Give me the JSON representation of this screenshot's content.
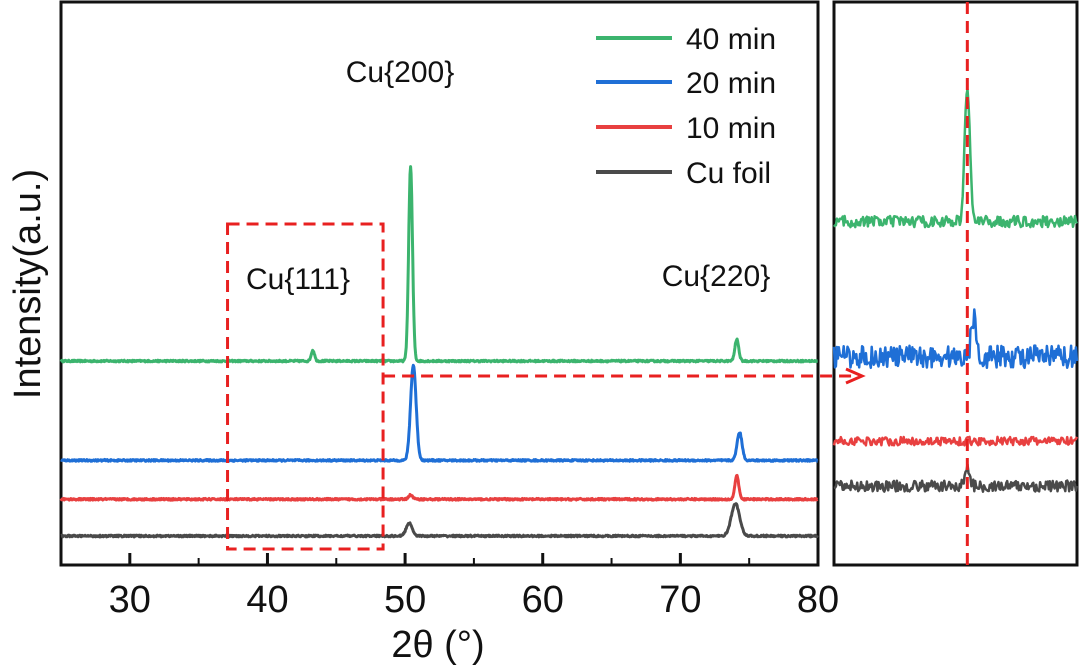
{
  "chart_data": [
    {
      "type": "line",
      "xlabel": "2θ (°)",
      "ylabel": "Intensity(a.u.)",
      "xlim": [
        25,
        80
      ],
      "ylim": [
        0,
        1
      ],
      "x_ticks": [
        30,
        40,
        50,
        60,
        70,
        80
      ],
      "x_tick_labels": [
        "30",
        "40",
        "50",
        "60",
        "70",
        "80"
      ],
      "y_ticks_shown": false,
      "legend": {
        "position": "top-right"
      },
      "series": [
        {
          "name": "40 min",
          "color": "#3cb46e",
          "baseline": 0.405,
          "peaks": [
            {
              "x": 43.3,
              "h": 0.025,
              "w": 0.12
            },
            {
              "x": 50.4,
              "h": 0.45,
              "w": 0.14
            },
            {
              "x": 74.1,
              "h": 0.05,
              "w": 0.14
            }
          ]
        },
        {
          "name": "20 min",
          "color": "#1f6fd6",
          "baseline": 0.175,
          "peaks": [
            {
              "x": 50.6,
              "h": 0.22,
              "w": 0.2
            },
            {
              "x": 74.3,
              "h": 0.065,
              "w": 0.18
            }
          ]
        },
        {
          "name": "10 min",
          "color": "#e84040",
          "baseline": 0.085,
          "peaks": [
            {
              "x": 50.4,
              "h": 0.01,
              "w": 0.15
            },
            {
              "x": 74.1,
              "h": 0.055,
              "w": 0.14
            }
          ]
        },
        {
          "name": "Cu foil",
          "color": "#4a4a4a",
          "baseline": 0.0,
          "peaks": [
            {
              "x": 50.3,
              "h": 0.03,
              "w": 0.22
            },
            {
              "x": 74.0,
              "h": 0.075,
              "w": 0.3
            }
          ]
        }
      ],
      "annotations": [
        {
          "text": "Cu{200}",
          "x": 50.4
        },
        {
          "text": "Cu{111}",
          "x": 43.3
        },
        {
          "text": "Cu{220}",
          "x": 74.1
        }
      ],
      "highlight_box": {
        "x_range": [
          37.1,
          48.4
        ],
        "style": "dashed",
        "color": "#e82020"
      }
    },
    {
      "type": "line",
      "description_role": "zoomed inset of the highlighted 2θ range",
      "x_range_source": [
        37.1,
        48.4
      ],
      "reference_line": {
        "x": 43.3,
        "style": "dashed",
        "color": "#e82020"
      },
      "series": [
        {
          "name": "40 min",
          "color": "#3cb46e",
          "baseline": 0.61,
          "noise": 0.02,
          "peak_h": 0.24,
          "peak_x": 43.3
        },
        {
          "name": "20 min",
          "color": "#1f6fd6",
          "baseline": 0.37,
          "noise": 0.04,
          "peak_h": 0.07,
          "peak_x": 43.6
        },
        {
          "name": "10 min",
          "color": "#e84040",
          "baseline": 0.22,
          "noise": 0.015,
          "peak_h": 0.0,
          "peak_x": 43.3
        },
        {
          "name": "Cu foil",
          "color": "#4a4a4a",
          "baseline": 0.14,
          "noise": 0.02,
          "peak_h": 0.03,
          "peak_x": 43.3
        }
      ]
    }
  ]
}
